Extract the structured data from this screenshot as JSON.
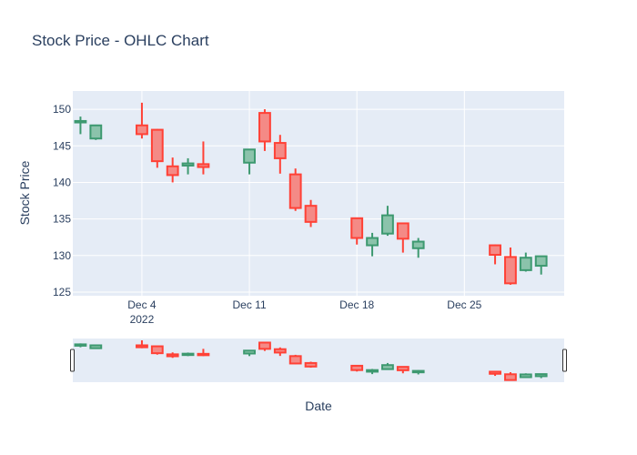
{
  "chart_data": {
    "type": "candlestick",
    "title": "Stock Price - OHLC Chart",
    "xlabel": "Date",
    "ylabel": "Stock Price",
    "ylim": [
      124.5,
      152.5
    ],
    "yticks": [
      125,
      130,
      135,
      140,
      145,
      150
    ],
    "xlim": [
      "2022-11-29T12:00",
      "2022-12-31T12:00"
    ],
    "xticks": [
      {
        "date": "2022-12-04",
        "label": "Dec 4",
        "sublabel": "2022"
      },
      {
        "date": "2022-12-11",
        "label": "Dec 11",
        "sublabel": ""
      },
      {
        "date": "2022-12-18",
        "label": "Dec 18",
        "sublabel": ""
      },
      {
        "date": "2022-12-25",
        "label": "Dec 25",
        "sublabel": ""
      }
    ],
    "grid": true,
    "rangeslider": true,
    "colors": {
      "increasing": "#3d9970",
      "increasing_fill": "#8bc3ab",
      "decreasing": "#ff4136",
      "decreasing_fill": "#f48a86",
      "plot_bg": "#e5ecf6",
      "grid": "#ffffff"
    },
    "data": [
      {
        "date": "2022-11-30",
        "open": 148.2,
        "high": 149.0,
        "low": 146.6,
        "close": 148.4
      },
      {
        "date": "2022-12-01",
        "open": 146.0,
        "high": 147.9,
        "low": 145.8,
        "close": 147.8
      },
      {
        "date": "2022-12-04",
        "open": 147.8,
        "high": 150.9,
        "low": 146.0,
        "close": 146.6
      },
      {
        "date": "2022-12-05",
        "open": 147.2,
        "high": 147.3,
        "low": 142.0,
        "close": 142.9
      },
      {
        "date": "2022-12-06",
        "open": 142.2,
        "high": 143.4,
        "low": 140.0,
        "close": 141.0
      },
      {
        "date": "2022-12-07",
        "open": 142.3,
        "high": 143.3,
        "low": 141.1,
        "close": 142.6
      },
      {
        "date": "2022-12-08",
        "open": 142.5,
        "high": 145.6,
        "low": 141.1,
        "close": 142.1
      },
      {
        "date": "2022-12-11",
        "open": 142.7,
        "high": 144.6,
        "low": 141.1,
        "close": 144.5
      },
      {
        "date": "2022-12-12",
        "open": 149.5,
        "high": 150.0,
        "low": 144.3,
        "close": 145.6
      },
      {
        "date": "2022-12-13",
        "open": 145.4,
        "high": 146.5,
        "low": 141.2,
        "close": 143.3
      },
      {
        "date": "2022-12-14",
        "open": 141.1,
        "high": 141.9,
        "low": 136.1,
        "close": 136.5
      },
      {
        "date": "2022-12-15",
        "open": 136.8,
        "high": 137.6,
        "low": 133.9,
        "close": 134.6
      },
      {
        "date": "2022-12-18",
        "open": 135.1,
        "high": 135.2,
        "low": 131.5,
        "close": 132.4
      },
      {
        "date": "2022-12-19",
        "open": 131.4,
        "high": 133.1,
        "low": 129.9,
        "close": 132.4
      },
      {
        "date": "2022-12-20",
        "open": 133.0,
        "high": 136.8,
        "low": 132.7,
        "close": 135.5
      },
      {
        "date": "2022-12-21",
        "open": 134.4,
        "high": 134.5,
        "low": 130.4,
        "close": 132.3
      },
      {
        "date": "2022-12-22",
        "open": 131.0,
        "high": 132.4,
        "low": 129.7,
        "close": 131.9
      },
      {
        "date": "2022-12-27",
        "open": 131.4,
        "high": 131.5,
        "low": 128.8,
        "close": 130.1
      },
      {
        "date": "2022-12-28",
        "open": 129.8,
        "high": 131.1,
        "low": 126.0,
        "close": 126.2
      },
      {
        "date": "2022-12-29",
        "open": 128.0,
        "high": 130.4,
        "low": 127.8,
        "close": 129.7
      },
      {
        "date": "2022-12-30",
        "open": 128.6,
        "high": 129.9,
        "low": 127.4,
        "close": 129.9
      }
    ]
  }
}
